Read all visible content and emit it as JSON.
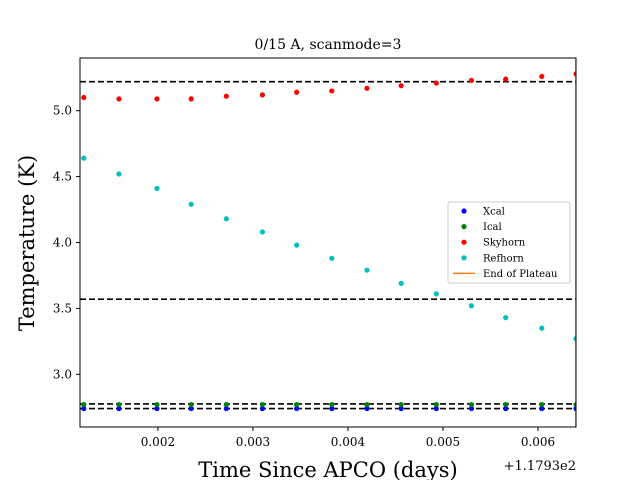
{
  "chart_data": {
    "type": "scatter",
    "title": "0/15 A, scanmode=3",
    "xlabel": "Time Since APCO (days)",
    "ylabel": "Temperature (K)",
    "x_offset_label": "+1.1793e2",
    "xlim": [
      0.00118,
      0.0064
    ],
    "ylim": [
      2.6,
      5.4
    ],
    "xticks": [
      0.002,
      0.003,
      0.004,
      0.005,
      0.006
    ],
    "xtick_labels": [
      "0.002",
      "0.003",
      "0.004",
      "0.005",
      "0.006"
    ],
    "yticks": [
      3.0,
      3.5,
      4.0,
      4.5,
      5.0
    ],
    "ytick_labels": [
      "3.0",
      "3.5",
      "4.0",
      "4.5",
      "5.0"
    ],
    "grid": false,
    "legend_position": "right",
    "x": [
      0.00122,
      0.00159,
      0.00199,
      0.00235,
      0.00272,
      0.0031,
      0.00346,
      0.00383,
      0.0042,
      0.00456,
      0.00493,
      0.0053,
      0.00566,
      0.00604,
      0.0064
    ],
    "series": [
      {
        "name": "Xcal",
        "color": "#0000ff",
        "values": [
          2.74,
          2.74,
          2.74,
          2.74,
          2.74,
          2.74,
          2.74,
          2.74,
          2.74,
          2.74,
          2.74,
          2.74,
          2.74,
          2.74,
          2.74
        ]
      },
      {
        "name": "Ical",
        "color": "#008000",
        "values": [
          2.77,
          2.77,
          2.77,
          2.77,
          2.77,
          2.77,
          2.77,
          2.77,
          2.77,
          2.77,
          2.77,
          2.77,
          2.77,
          2.77,
          2.77
        ]
      },
      {
        "name": "Skyhorn",
        "color": "#ff0000",
        "values": [
          5.1,
          5.09,
          5.09,
          5.09,
          5.11,
          5.12,
          5.14,
          5.15,
          5.17,
          5.19,
          5.21,
          5.23,
          5.24,
          5.26,
          5.28
        ]
      },
      {
        "name": "Refhorn",
        "color": "#00bfbf",
        "values": [
          4.64,
          4.52,
          4.41,
          4.29,
          4.18,
          4.08,
          3.98,
          3.88,
          3.79,
          3.69,
          3.61,
          3.52,
          3.43,
          3.35,
          3.27
        ]
      }
    ],
    "hlines": [
      5.22,
      3.57,
      2.775,
      2.74
    ],
    "vline": {
      "name": "End of Plateau",
      "color": "#ff7f0e",
      "x": 0.0064
    }
  }
}
